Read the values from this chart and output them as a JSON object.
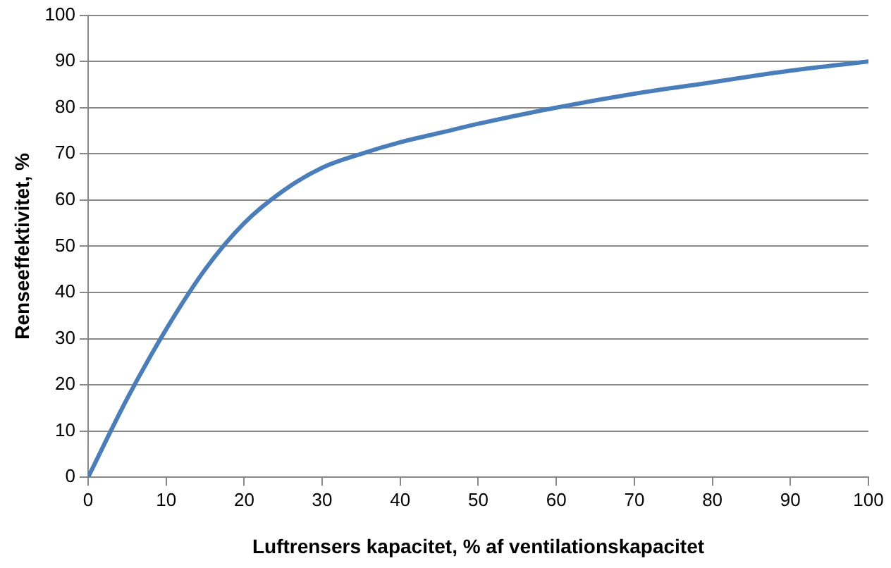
{
  "chart_data": {
    "type": "line",
    "xlabel": "Luftrensers kapacitet, % af ventilationskapacitet",
    "ylabel": "Renseeffektivitet, %",
    "x": [
      0,
      5,
      10,
      15,
      20,
      25,
      30,
      35,
      40,
      45,
      50,
      60,
      70,
      80,
      90,
      100
    ],
    "series": [
      {
        "color": "#4a7ebb",
        "values": [
          0,
          17,
          32,
          45,
          55,
          62,
          67,
          70,
          72.5,
          74.5,
          76.5,
          80,
          83,
          85.5,
          88,
          90
        ]
      }
    ],
    "xlim": [
      0,
      100
    ],
    "xticks": [
      0,
      10,
      20,
      30,
      40,
      50,
      60,
      70,
      80,
      90,
      100
    ],
    "ylim": [
      0,
      100
    ],
    "yticks": [
      0,
      10,
      20,
      30,
      40,
      50,
      60,
      70,
      80,
      90,
      100
    ],
    "grid": "y",
    "legend": false,
    "marker": "none",
    "line_style": "solid"
  }
}
